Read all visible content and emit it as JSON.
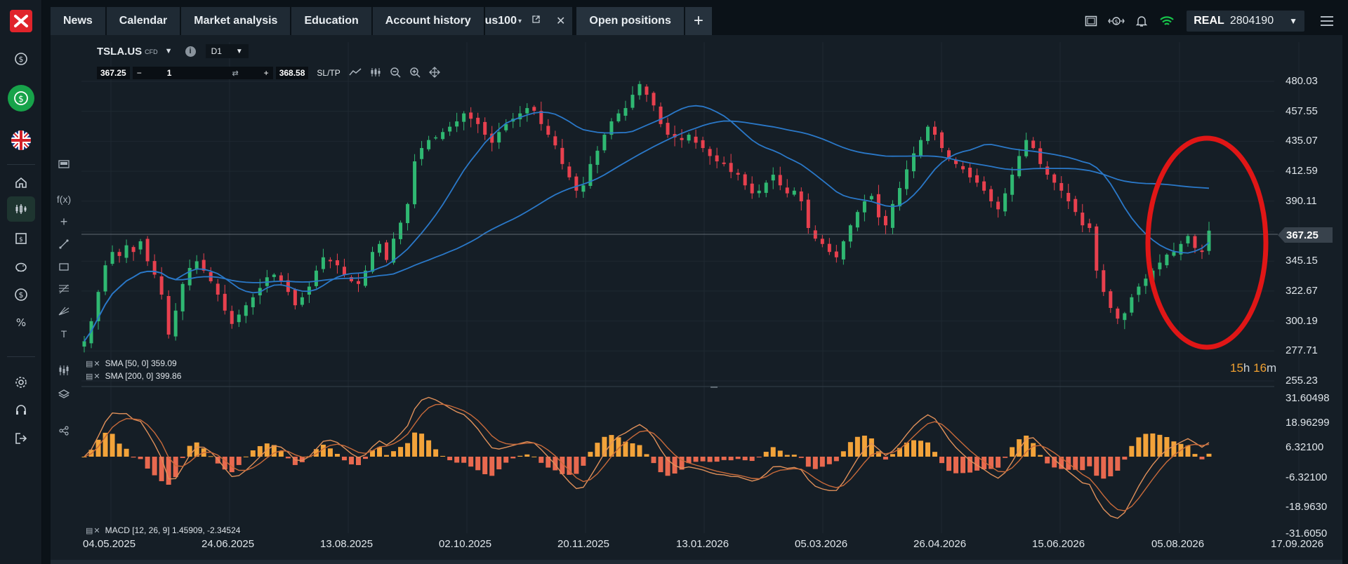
{
  "top_tabs": [
    {
      "label": "News"
    },
    {
      "label": "Calendar"
    },
    {
      "label": "Market analysis"
    },
    {
      "label": "Education"
    },
    {
      "label": "Account history"
    }
  ],
  "symbol_tab": {
    "label": "us100"
  },
  "open_positions_tab": {
    "label": "Open positions"
  },
  "add_tab": {
    "label": "+"
  },
  "account": {
    "type": "REAL",
    "number": "2804190"
  },
  "symbol": {
    "name": "TSLA.US",
    "type": "CFD",
    "timeframe": "D1"
  },
  "trade": {
    "sell_price": "367.25",
    "quantity": "1",
    "buy_price": "368.58",
    "sltp_label": "SL/TP"
  },
  "indicators": {
    "sma50": "SMA [50, 0] 359.09",
    "sma200": "SMA [200, 0] 399.86",
    "macd": "MACD [12, 26, 9] 1.45909, -2.34524"
  },
  "current_price": "367.25",
  "countdown": {
    "h": "15",
    "h_unit": "h",
    "m": "16",
    "m_unit": "m"
  },
  "colors": {
    "bull": "#2fb872",
    "bear": "#e8404e",
    "sma": "#2a78c8",
    "macd_pos": "#f2a33a",
    "macd_neg": "#e8694f",
    "annotation": "#e01616",
    "accent_green": "#17a34a"
  },
  "icons": [
    "xtb-logo-icon",
    "dollar-icon",
    "dollar-active-icon",
    "uk-flag-icon",
    "home-icon",
    "chart-icon",
    "news-icon",
    "piggy-bank-icon",
    "dollar-circle-icon",
    "percent-icon",
    "settings-icon",
    "headset-icon",
    "logout-icon"
  ],
  "chart_data": {
    "type": "candlestick",
    "price_axis": [
      "480.03",
      "457.55",
      "435.07",
      "412.59",
      "390.11",
      "367.25",
      "345.15",
      "322.67",
      "300.19",
      "277.71",
      "255.23"
    ],
    "macd_axis": [
      "31.60498",
      "18.96299",
      "6.32100",
      "-6.32100",
      "-18.9630",
      "-31.6050"
    ],
    "x_labels": [
      "04.05.2025",
      "24.06.2025",
      "13.08.2025",
      "02.10.2025",
      "20.11.2025",
      "13.01.2026",
      "05.03.2026",
      "26.04.2026",
      "15.06.2026",
      "05.08.2026",
      "17.09.2026"
    ],
    "ylim": [
      255.23,
      480.03
    ],
    "close_series": [
      285,
      300,
      322,
      342,
      352,
      349,
      357,
      352,
      360,
      345,
      335,
      320,
      290,
      308,
      328,
      340,
      345,
      338,
      330,
      320,
      308,
      298,
      305,
      312,
      318,
      325,
      333,
      335,
      330,
      322,
      312,
      318,
      326,
      338,
      348,
      345,
      342,
      335,
      330,
      328,
      338,
      352,
      358,
      346,
      362,
      374,
      388,
      420,
      430,
      436,
      438,
      442,
      446,
      450,
      456,
      452,
      448,
      440,
      434,
      442,
      448,
      452,
      456,
      460,
      458,
      448,
      440,
      432,
      418,
      408,
      398,
      402,
      418,
      428,
      440,
      450,
      456,
      460,
      470,
      478,
      470,
      462,
      448,
      440,
      438,
      436,
      440,
      434,
      430,
      424,
      420,
      418,
      412,
      410,
      402,
      396,
      398,
      404,
      410,
      402,
      396,
      398,
      390,
      370,
      362,
      358,
      352,
      348,
      360,
      372,
      382,
      390,
      394,
      378,
      372,
      388,
      400,
      414,
      426,
      436,
      446,
      440,
      430,
      422,
      418,
      414,
      408,
      404,
      398,
      390,
      384,
      396,
      410,
      424,
      436,
      430,
      418,
      410,
      404,
      398,
      390,
      382,
      372,
      370,
      338,
      322,
      310,
      302,
      306,
      318,
      326,
      332,
      338,
      344,
      350,
      352,
      358,
      364,
      355,
      352,
      368
    ],
    "sma50_endpoint": 359.09,
    "sma200_endpoint": 399.86,
    "annotation": "red ellipse around latest candles"
  }
}
